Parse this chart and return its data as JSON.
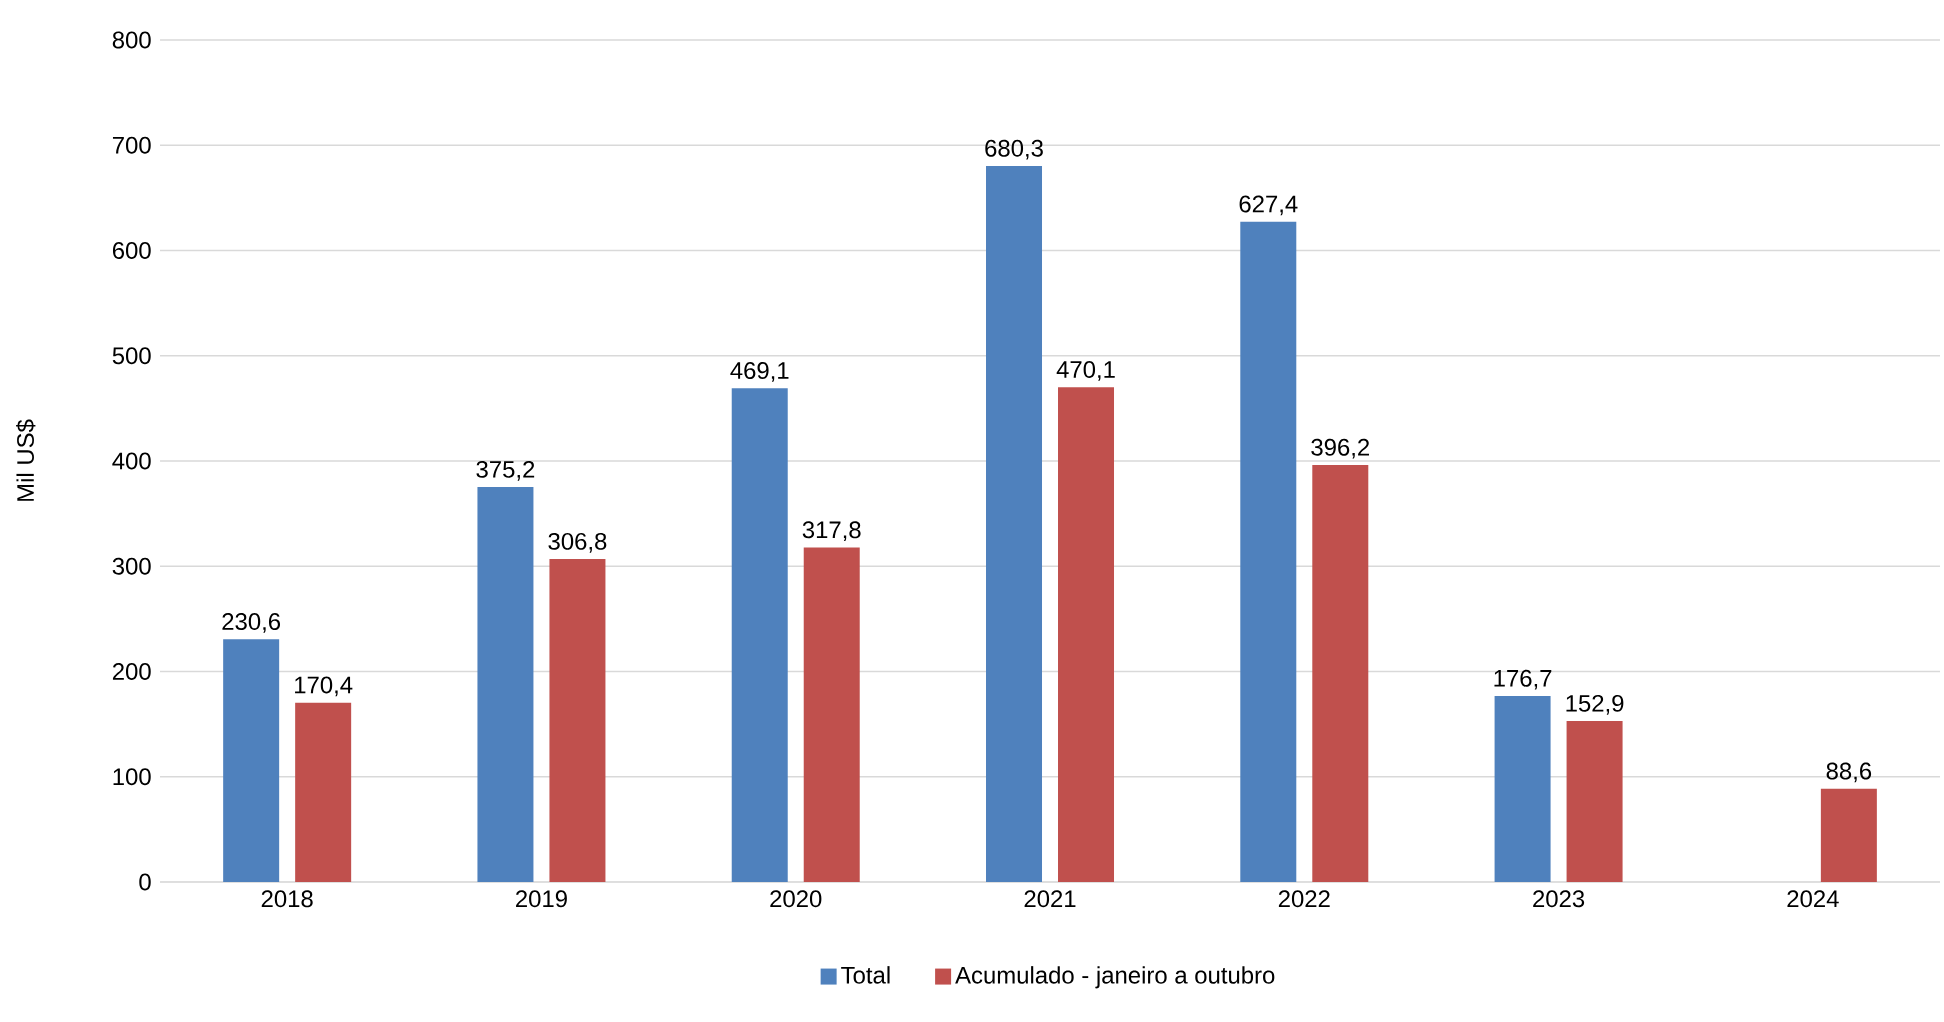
{
  "chart_data": {
    "type": "bar",
    "ylabel": "Mil US$",
    "categories": [
      "2018",
      "2019",
      "2020",
      "2021",
      "2022",
      "2023",
      "2024"
    ],
    "series": [
      {
        "name": "Total",
        "color": "#4f81bd",
        "values": [
          230.6,
          375.2,
          469.1,
          680.3,
          627.4,
          176.7,
          null
        ],
        "value_labels": [
          "230,6",
          "375,2",
          "469,1",
          "680,3",
          "627,4",
          "176,7",
          null
        ]
      },
      {
        "name": "Acumulado - janeiro a outubro",
        "color": "#c0504d",
        "values": [
          170.4,
          306.8,
          317.8,
          470.1,
          396.2,
          152.9,
          88.6
        ],
        "value_labels": [
          "170,4",
          "306,8",
          "317,8",
          "470,1",
          "396,2",
          "152,9",
          "88,6"
        ]
      }
    ],
    "ylim": [
      0,
      800
    ],
    "yticks": [
      0,
      100,
      200,
      300,
      400,
      500,
      600,
      700,
      800
    ],
    "grid": "y",
    "legend": "bottom"
  }
}
